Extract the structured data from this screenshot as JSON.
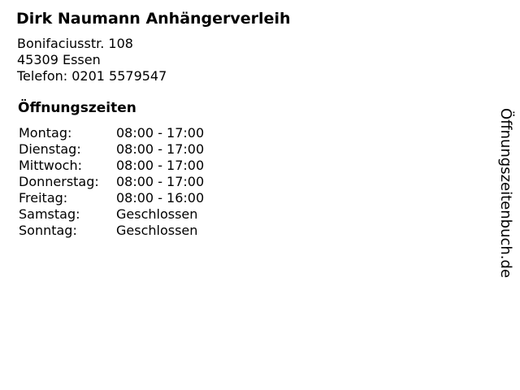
{
  "business": {
    "name": "Dirk Naumann Anhängerverleih",
    "address_line1": "Bonifaciusstr. 108",
    "address_line2": "45309 Essen",
    "phone": "Telefon: 0201 5579547"
  },
  "opening_hours": {
    "heading": "Öffnungszeiten",
    "rows": [
      {
        "day": "Montag:",
        "hours": "08:00 - 17:00"
      },
      {
        "day": "Dienstag:",
        "hours": "08:00 - 17:00"
      },
      {
        "day": "Mittwoch:",
        "hours": "08:00 - 17:00"
      },
      {
        "day": "Donnerstag:",
        "hours": "08:00 - 17:00"
      },
      {
        "day": "Freitag:",
        "hours": "08:00 - 16:00"
      },
      {
        "day": "Samstag:",
        "hours": "Geschlossen"
      },
      {
        "day": "Sonntag:",
        "hours": "Geschlossen"
      }
    ]
  },
  "branding": {
    "site": "Öffnungszeitenbuch.de"
  },
  "colors": {
    "background": "#ffffff",
    "text": "#000000"
  }
}
